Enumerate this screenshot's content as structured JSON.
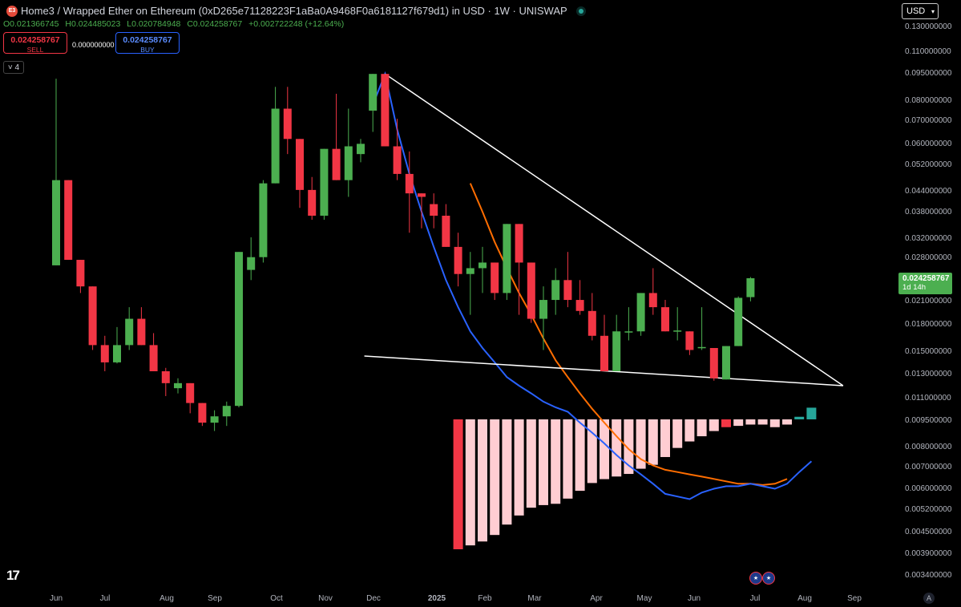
{
  "header": {
    "logo_text": "E3",
    "title": "Home3 / Wrapped Ether on Ethereum (0xD265e71128223F1aBa0A9468F0a6181127f679d1) in USD · 1W · UNISWAP",
    "ohlc": {
      "open": "O0.021366745",
      "high": "H0.024485023",
      "low": "L0.020784948",
      "close": "C0.024258767",
      "change": "+0.002722248 (+12.64%)"
    }
  },
  "trade": {
    "sell_price": "0.024258767",
    "sell_label": "SELL",
    "spread": "0.000000000",
    "buy_price": "0.024258767",
    "buy_label": "BUY"
  },
  "collapse_label": "˅ 4",
  "currency_selector": "USD",
  "price_badge": {
    "price": "0.024258767",
    "countdown": "1d 14h"
  },
  "logo_mark": "17",
  "auto_button": "A",
  "colors": {
    "up": "#4caf50",
    "down": "#f23645",
    "ma_fast": "#2962ff",
    "ma_slow": "#ff6d00",
    "hist_neg": "#ffcdd2",
    "hist_neg_strong": "#f23645",
    "hist_pos": "#26a69a",
    "trendline": "#ffffff"
  },
  "chart_data": {
    "type": "candlestick",
    "scale": "log",
    "y_ticks": [
      "0.130000000",
      "0.110000000",
      "0.095000000",
      "0.080000000",
      "0.070000000",
      "0.060000000",
      "0.052000000",
      "0.044000000",
      "0.038000000",
      "0.032000000",
      "0.028000000",
      "0.024258767",
      "0.021000000",
      "0.018000000",
      "0.015000000",
      "0.013000000",
      "0.011000000",
      "0.009500000",
      "0.008000000",
      "0.007000000",
      "0.006000000",
      "0.005200000",
      "0.004500000",
      "0.003900000",
      "0.003400000"
    ],
    "x_labels": [
      "Jun",
      "Jul",
      "Aug",
      "Sep",
      "Oct",
      "Nov",
      "Dec",
      "2025",
      "Feb",
      "Mar",
      "Apr",
      "May",
      "Jun",
      "Jul",
      "Aug",
      "Sep"
    ],
    "candles": [
      {
        "o": 0.0265,
        "h": 0.093,
        "l": 0.0265,
        "c": 0.047
      },
      {
        "o": 0.047,
        "h": 0.047,
        "l": 0.0275,
        "c": 0.0275
      },
      {
        "o": 0.0275,
        "h": 0.0275,
        "l": 0.022,
        "c": 0.023
      },
      {
        "o": 0.023,
        "h": 0.023,
        "l": 0.015,
        "c": 0.0155
      },
      {
        "o": 0.0155,
        "h": 0.0165,
        "l": 0.013,
        "c": 0.0138
      },
      {
        "o": 0.0138,
        "h": 0.0175,
        "l": 0.0137,
        "c": 0.0155
      },
      {
        "o": 0.0155,
        "h": 0.02,
        "l": 0.015,
        "c": 0.0185
      },
      {
        "o": 0.0185,
        "h": 0.02,
        "l": 0.0155,
        "c": 0.0155
      },
      {
        "o": 0.0155,
        "h": 0.0168,
        "l": 0.013,
        "c": 0.013
      },
      {
        "o": 0.013,
        "h": 0.0133,
        "l": 0.011,
        "c": 0.012
      },
      {
        "o": 0.0116,
        "h": 0.0124,
        "l": 0.0112,
        "c": 0.012
      },
      {
        "o": 0.012,
        "h": 0.012,
        "l": 0.0098,
        "c": 0.0105
      },
      {
        "o": 0.0105,
        "h": 0.0105,
        "l": 0.009,
        "c": 0.0092
      },
      {
        "o": 0.0092,
        "h": 0.01,
        "l": 0.0087,
        "c": 0.0096
      },
      {
        "o": 0.0096,
        "h": 0.0106,
        "l": 0.009,
        "c": 0.0103
      },
      {
        "o": 0.0103,
        "h": 0.029,
        "l": 0.0102,
        "c": 0.029
      },
      {
        "o": 0.0257,
        "h": 0.032,
        "l": 0.024,
        "c": 0.028
      },
      {
        "o": 0.028,
        "h": 0.047,
        "l": 0.027,
        "c": 0.046
      },
      {
        "o": 0.046,
        "h": 0.088,
        "l": 0.046,
        "c": 0.076
      },
      {
        "o": 0.076,
        "h": 0.088,
        "l": 0.056,
        "c": 0.062
      },
      {
        "o": 0.062,
        "h": 0.062,
        "l": 0.039,
        "c": 0.044
      },
      {
        "o": 0.044,
        "h": 0.048,
        "l": 0.036,
        "c": 0.037
      },
      {
        "o": 0.037,
        "h": 0.058,
        "l": 0.036,
        "c": 0.058
      },
      {
        "o": 0.058,
        "h": 0.084,
        "l": 0.047,
        "c": 0.047
      },
      {
        "o": 0.047,
        "h": 0.076,
        "l": 0.042,
        "c": 0.059
      },
      {
        "o": 0.056,
        "h": 0.062,
        "l": 0.053,
        "c": 0.06
      },
      {
        "o": 0.075,
        "h": 0.096,
        "l": 0.065,
        "c": 0.096
      },
      {
        "o": 0.096,
        "h": 0.096,
        "l": 0.059,
        "c": 0.059
      },
      {
        "o": 0.059,
        "h": 0.071,
        "l": 0.047,
        "c": 0.049
      },
      {
        "o": 0.049,
        "h": 0.057,
        "l": 0.033,
        "c": 0.043
      },
      {
        "o": 0.043,
        "h": 0.043,
        "l": 0.034,
        "c": 0.042
      },
      {
        "o": 0.04,
        "h": 0.043,
        "l": 0.034,
        "c": 0.037
      },
      {
        "o": 0.037,
        "h": 0.04,
        "l": 0.03,
        "c": 0.03
      },
      {
        "o": 0.03,
        "h": 0.033,
        "l": 0.023,
        "c": 0.025
      },
      {
        "o": 0.025,
        "h": 0.029,
        "l": 0.019,
        "c": 0.026
      },
      {
        "o": 0.026,
        "h": 0.03,
        "l": 0.022,
        "c": 0.027
      },
      {
        "o": 0.027,
        "h": 0.027,
        "l": 0.021,
        "c": 0.022
      },
      {
        "o": 0.022,
        "h": 0.035,
        "l": 0.021,
        "c": 0.035
      },
      {
        "o": 0.035,
        "h": 0.035,
        "l": 0.019,
        "c": 0.027
      },
      {
        "o": 0.027,
        "h": 0.027,
        "l": 0.018,
        "c": 0.0185
      },
      {
        "o": 0.0185,
        "h": 0.023,
        "l": 0.015,
        "c": 0.021
      },
      {
        "o": 0.021,
        "h": 0.026,
        "l": 0.019,
        "c": 0.024
      },
      {
        "o": 0.024,
        "h": 0.029,
        "l": 0.02,
        "c": 0.021
      },
      {
        "o": 0.021,
        "h": 0.024,
        "l": 0.019,
        "c": 0.0195
      },
      {
        "o": 0.0195,
        "h": 0.022,
        "l": 0.016,
        "c": 0.0165
      },
      {
        "o": 0.0165,
        "h": 0.019,
        "l": 0.013,
        "c": 0.013
      },
      {
        "o": 0.013,
        "h": 0.019,
        "l": 0.013,
        "c": 0.017
      },
      {
        "o": 0.017,
        "h": 0.02,
        "l": 0.016,
        "c": 0.017
      },
      {
        "o": 0.017,
        "h": 0.022,
        "l": 0.0165,
        "c": 0.022
      },
      {
        "o": 0.022,
        "h": 0.026,
        "l": 0.019,
        "c": 0.02
      },
      {
        "o": 0.02,
        "h": 0.021,
        "l": 0.017,
        "c": 0.017
      },
      {
        "o": 0.0171,
        "h": 0.02,
        "l": 0.016,
        "c": 0.0171
      },
      {
        "o": 0.017,
        "h": 0.017,
        "l": 0.0145,
        "c": 0.015
      },
      {
        "o": 0.0152,
        "h": 0.02,
        "l": 0.015,
        "c": 0.0153
      },
      {
        "o": 0.0152,
        "h": 0.0152,
        "l": 0.0122,
        "c": 0.0124
      },
      {
        "o": 0.0123,
        "h": 0.0154,
        "l": 0.0123,
        "c": 0.0154
      },
      {
        "o": 0.0154,
        "h": 0.0215,
        "l": 0.0154,
        "c": 0.0213
      },
      {
        "o": 0.0214,
        "h": 0.0245,
        "l": 0.0208,
        "c": 0.0243
      }
    ],
    "ma_fast": [
      [
        26,
        0.078
      ],
      [
        27,
        0.096
      ],
      [
        28,
        0.066
      ],
      [
        29,
        0.049
      ],
      [
        30,
        0.038
      ],
      [
        31,
        0.03
      ],
      [
        32,
        0.024
      ],
      [
        33,
        0.02
      ],
      [
        34,
        0.017
      ],
      [
        35,
        0.0152
      ],
      [
        36,
        0.0138
      ],
      [
        37,
        0.0125
      ],
      [
        38,
        0.0118
      ],
      [
        39,
        0.0112
      ],
      [
        40,
        0.0106
      ],
      [
        41,
        0.0102
      ],
      [
        42,
        0.0099
      ],
      [
        43,
        0.0092
      ],
      [
        44,
        0.0086
      ],
      [
        45,
        0.008
      ],
      [
        46,
        0.0074
      ],
      [
        47,
        0.0069
      ],
      [
        48,
        0.0065
      ],
      [
        49,
        0.0061
      ],
      [
        50,
        0.0057
      ],
      [
        51,
        0.0056
      ],
      [
        52,
        0.0055
      ],
      [
        53,
        0.00575
      ],
      [
        54,
        0.0059
      ],
      [
        55,
        0.006
      ],
      [
        56,
        0.006
      ],
      [
        57,
        0.0061
      ],
      [
        58,
        0.006
      ],
      [
        59,
        0.0059
      ],
      [
        60,
        0.0061
      ],
      [
        61,
        0.0066
      ],
      [
        62,
        0.0071
      ]
    ],
    "ma_slow": [
      [
        34,
        0.046
      ],
      [
        35,
        0.038
      ],
      [
        36,
        0.031
      ],
      [
        37,
        0.026
      ],
      [
        38,
        0.022
      ],
      [
        39,
        0.019
      ],
      [
        40,
        0.0162
      ],
      [
        41,
        0.014
      ],
      [
        42,
        0.0125
      ],
      [
        43,
        0.0112
      ],
      [
        44,
        0.0101
      ],
      [
        45,
        0.0092
      ],
      [
        46,
        0.0084
      ],
      [
        47,
        0.0077
      ],
      [
        48,
        0.0072
      ],
      [
        49,
        0.0069
      ],
      [
        50,
        0.0067
      ],
      [
        51,
        0.0066
      ],
      [
        52,
        0.0065
      ],
      [
        53,
        0.0064
      ],
      [
        54,
        0.0063
      ],
      [
        55,
        0.0062
      ],
      [
        56,
        0.0061
      ],
      [
        57,
        0.0061
      ],
      [
        58,
        0.00605
      ],
      [
        59,
        0.0061
      ],
      [
        60,
        0.0063
      ]
    ],
    "histogram": [
      {
        "i": 33,
        "v": -1.0
      },
      {
        "i": 34,
        "v": -0.97
      },
      {
        "i": 35,
        "v": -0.94
      },
      {
        "i": 36,
        "v": -0.89
      },
      {
        "i": 37,
        "v": -0.81
      },
      {
        "i": 38,
        "v": -0.74
      },
      {
        "i": 39,
        "v": -0.68
      },
      {
        "i": 40,
        "v": -0.66
      },
      {
        "i": 41,
        "v": -0.65
      },
      {
        "i": 42,
        "v": -0.61
      },
      {
        "i": 43,
        "v": -0.55
      },
      {
        "i": 44,
        "v": -0.49
      },
      {
        "i": 45,
        "v": -0.46
      },
      {
        "i": 46,
        "v": -0.44
      },
      {
        "i": 47,
        "v": -0.42
      },
      {
        "i": 48,
        "v": -0.38
      },
      {
        "i": 49,
        "v": -0.35
      },
      {
        "i": 50,
        "v": -0.29
      },
      {
        "i": 51,
        "v": -0.22
      },
      {
        "i": 52,
        "v": -0.17
      },
      {
        "i": 53,
        "v": -0.13
      },
      {
        "i": 54,
        "v": -0.09
      },
      {
        "i": 55,
        "v": -0.06
      },
      {
        "i": 56,
        "v": -0.05
      },
      {
        "i": 57,
        "v": -0.04
      },
      {
        "i": 58,
        "v": -0.04
      },
      {
        "i": 59,
        "v": -0.06
      },
      {
        "i": 60,
        "v": -0.04
      },
      {
        "i": 61,
        "v": 0.02
      },
      {
        "i": 62,
        "v": 0.09
      }
    ],
    "trendlines": [
      {
        "from": [
          27,
          0.096
        ],
        "to": [
          64.6,
          0.0118
        ]
      },
      {
        "from": [
          25.3,
          0.0144
        ],
        "to": [
          64.6,
          0.0118
        ]
      }
    ],
    "last_price": "0.024258767"
  }
}
